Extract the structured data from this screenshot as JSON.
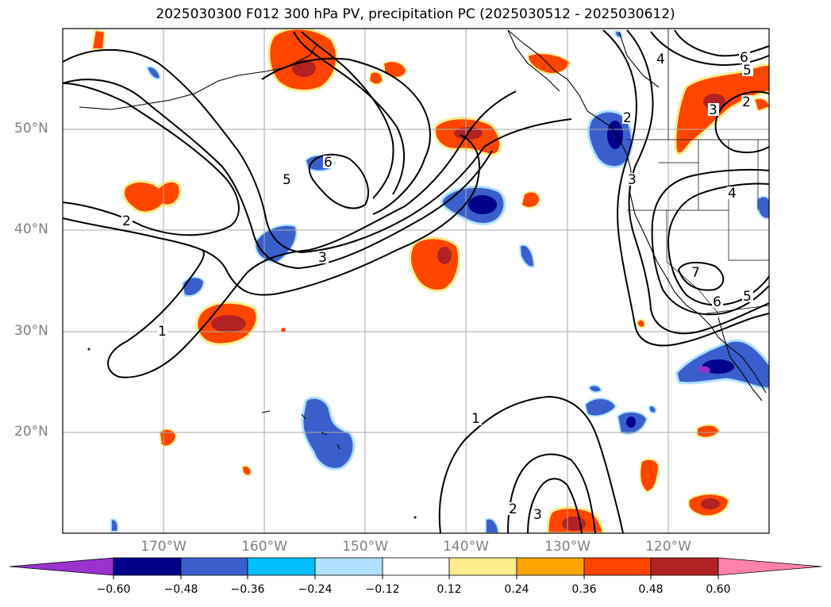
{
  "title": "2025030300 F012 300 hPa PV, precipitation PC (2025030512 - 2025030612)",
  "lat_labels": [
    "50°N",
    "40°N",
    "30°N",
    "20°N"
  ],
  "lon_labels": [
    "170°W",
    "160°W",
    "150°W",
    "140°W",
    "130°W",
    "120°W"
  ],
  "map": {
    "lon_range": [
      -180,
      -110
    ],
    "lat_range": [
      10,
      60
    ],
    "gridlines": true,
    "projection": "PlateCarree"
  },
  "colorbar": {
    "labels": [
      "−0.60",
      "−0.48",
      "−0.36",
      "−0.24",
      "−0.12",
      "0.12",
      "0.24",
      "0.36",
      "0.48",
      "0.60"
    ],
    "levels": [
      -0.6,
      -0.48,
      -0.36,
      -0.24,
      -0.12,
      0.12,
      0.24,
      0.36,
      0.48,
      0.6
    ],
    "colors": [
      "#9a32cd",
      "#00008b",
      "#3a5fcd",
      "#00bfff",
      "#b0e2ff",
      "#ffffff",
      "#ffec8b",
      "#ffa500",
      "#ff4500",
      "#b22222",
      "#ff82ab"
    ],
    "extend": "both"
  },
  "pv_contour_labels": [
    "1",
    "2",
    "3",
    "4",
    "5",
    "6",
    "7"
  ]
}
